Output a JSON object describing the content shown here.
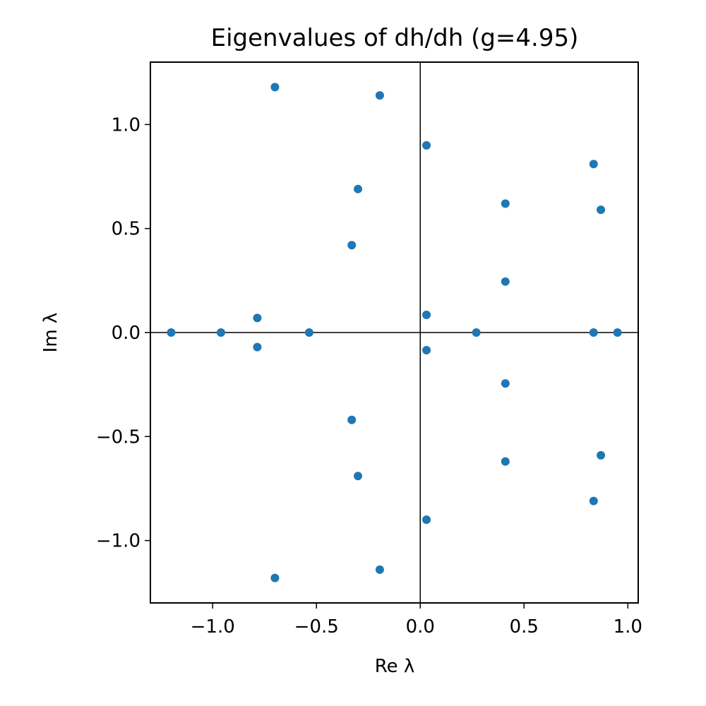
{
  "chart_data": {
    "type": "scatter",
    "title": "Eigenvalues of dh/dh   (g=4.95)",
    "xlabel": "Re λ",
    "ylabel": "Im λ",
    "xlim": [
      -1.3,
      1.05
    ],
    "ylim": [
      -1.3,
      1.3
    ],
    "xticks": [
      {
        "value": -1.0,
        "label": "−1.0"
      },
      {
        "value": -0.5,
        "label": "−0.5"
      },
      {
        "value": 0.0,
        "label": "0.0"
      },
      {
        "value": 0.5,
        "label": "0.5"
      },
      {
        "value": 1.0,
        "label": "1.0"
      }
    ],
    "yticks": [
      {
        "value": 1.0,
        "label": "1.0"
      },
      {
        "value": 0.5,
        "label": "0.5"
      },
      {
        "value": 0.0,
        "label": "0.0"
      },
      {
        "value": -0.5,
        "label": "−0.5"
      },
      {
        "value": -1.0,
        "label": "−1.0"
      }
    ],
    "grid": false,
    "reference_lines": {
      "x": 0,
      "y": 0
    },
    "marker_color": "#1f77b4",
    "points": [
      {
        "x": -1.2,
        "y": 0.0
      },
      {
        "x": -0.96,
        "y": 0.0
      },
      {
        "x": -0.785,
        "y": 0.07
      },
      {
        "x": -0.785,
        "y": -0.07
      },
      {
        "x": -0.535,
        "y": 0.0
      },
      {
        "x": -0.7,
        "y": 1.18
      },
      {
        "x": -0.7,
        "y": -1.18
      },
      {
        "x": -0.195,
        "y": 1.14
      },
      {
        "x": -0.195,
        "y": -1.14
      },
      {
        "x": -0.3,
        "y": 0.69
      },
      {
        "x": -0.3,
        "y": -0.69
      },
      {
        "x": -0.33,
        "y": 0.42
      },
      {
        "x": -0.33,
        "y": -0.42
      },
      {
        "x": 0.03,
        "y": 0.9
      },
      {
        "x": 0.03,
        "y": -0.9
      },
      {
        "x": 0.03,
        "y": 0.085
      },
      {
        "x": 0.03,
        "y": -0.085
      },
      {
        "x": 0.27,
        "y": 0.0
      },
      {
        "x": 0.41,
        "y": 0.62
      },
      {
        "x": 0.41,
        "y": -0.62
      },
      {
        "x": 0.41,
        "y": 0.245
      },
      {
        "x": 0.41,
        "y": -0.245
      },
      {
        "x": 0.835,
        "y": 0.81
      },
      {
        "x": 0.835,
        "y": -0.81
      },
      {
        "x": 0.87,
        "y": 0.59
      },
      {
        "x": 0.87,
        "y": -0.59
      },
      {
        "x": 0.835,
        "y": 0.0
      },
      {
        "x": 0.95,
        "y": 0.0
      }
    ]
  }
}
